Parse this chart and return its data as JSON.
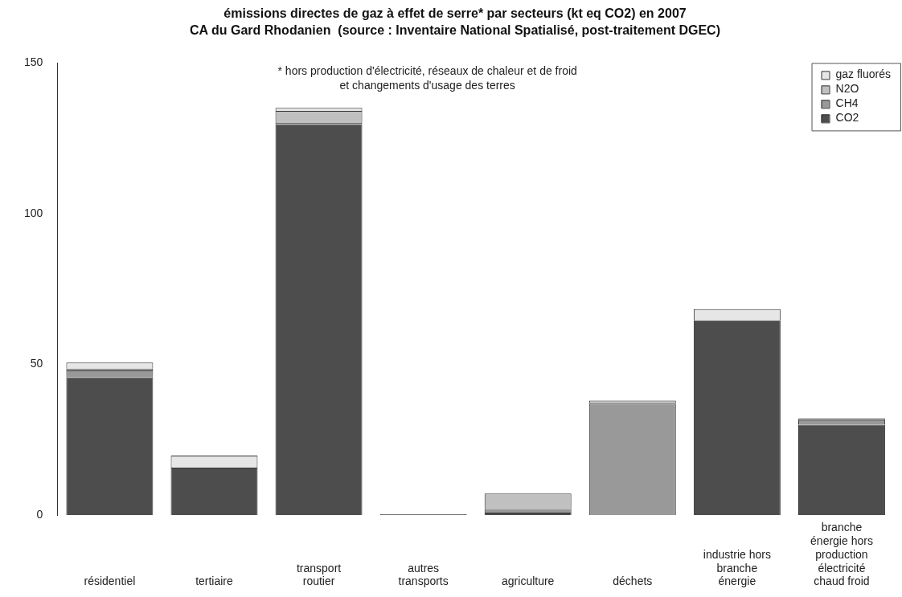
{
  "chart_data": {
    "type": "bar",
    "stacked": true,
    "title": "émissions directes de gaz à effet de serre* par secteurs (kt eq CO2) en 2007",
    "subtitle": "CA du Gard Rhodanien  (source : Inventaire National Spatialisé, post-traitement DGEC)",
    "annotations": [
      "* hors production d'électricité, réseaux de chaleur et de froid\net changements d'usage des terres"
    ],
    "categories": [
      "résidentiel",
      "tertiaire",
      "transport\nroutier",
      "autres\ntransports",
      "agriculture",
      "déchets",
      "industrie hors\nbranche\nénergie",
      "branche\nénergie hors\nproduction\nélectricité\nchaud froid"
    ],
    "series": [
      {
        "name": "CO2",
        "color": "#4d4d4d",
        "values": [
          45.7,
          15.7,
          129.7,
          0.3,
          0.8,
          0,
          64.6,
          30.0
        ]
      },
      {
        "name": "CH4",
        "color": "#999999",
        "values": [
          2.3,
          0,
          0.4,
          0,
          1.2,
          37.0,
          0,
          1.5
        ]
      },
      {
        "name": "N2O",
        "color": "#c0c0c0",
        "values": [
          0.6,
          0,
          4.0,
          0,
          5.1,
          1.0,
          0,
          0.5
        ]
      },
      {
        "name": "gaz fluorés",
        "color": "#e6e6e6",
        "values": [
          2.0,
          4.0,
          1.0,
          0,
          0,
          0,
          3.7,
          0
        ]
      }
    ],
    "ylim": [
      0,
      150
    ],
    "yticks": [
      0,
      50,
      100,
      150
    ],
    "grid": false,
    "legend": "top right"
  }
}
